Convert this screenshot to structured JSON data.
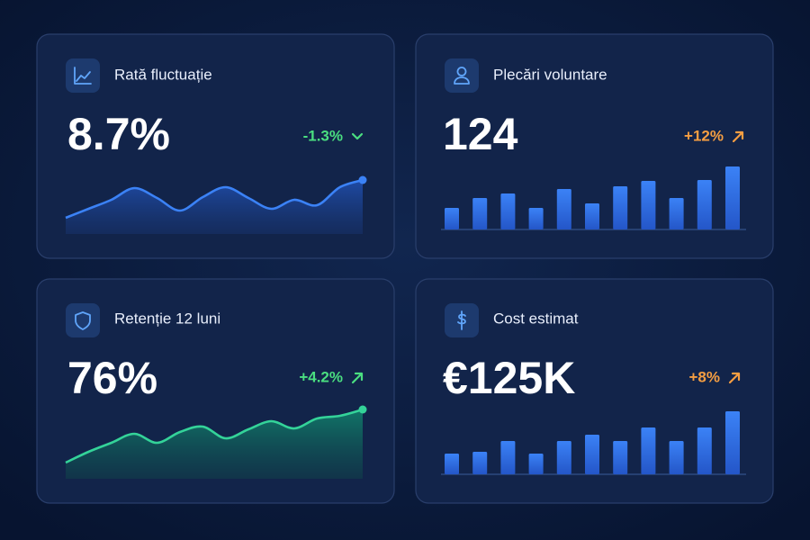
{
  "cards": [
    {
      "title": "Rată fluctuație",
      "value": "8.7%",
      "change": "-1.3%",
      "chart": {
        "type": "line",
        "color": "#3b82f6",
        "values": [
          8,
          18,
          28,
          41,
          30,
          16,
          31,
          42,
          30,
          18,
          28,
          22,
          42,
          50
        ]
      }
    },
    {
      "title": "Plecări voluntare",
      "value": "124",
      "change": "+12%",
      "chart": {
        "type": "bar",
        "color": "#2f6fe6",
        "values": [
          24,
          35,
          40,
          24,
          45,
          29,
          48,
          54,
          35,
          55,
          70
        ]
      }
    },
    {
      "title": "Retenție 12 luni",
      "value": "76%",
      "change": "+4.2%",
      "chart": {
        "type": "line",
        "color": "#34d399",
        "values": [
          18,
          30,
          40,
          50,
          40,
          52,
          58,
          45,
          55,
          64,
          56,
          67,
          70,
          77
        ]
      }
    },
    {
      "title": "Cost estimat",
      "value": "€125K",
      "change": "+8%",
      "chart": {
        "type": "bar",
        "color": "#2f6fe6",
        "values": [
          23,
          25,
          37,
          23,
          37,
          44,
          37,
          52,
          37,
          52,
          70
        ]
      }
    }
  ]
}
